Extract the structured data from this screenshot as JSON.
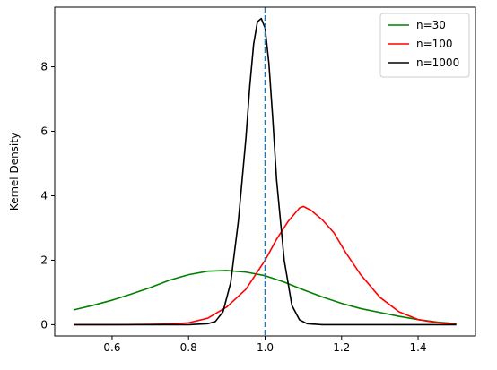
{
  "chart_data": {
    "type": "line",
    "title": "",
    "xlabel": "",
    "ylabel": "Kernel Density",
    "xlim": [
      0.45,
      1.55
    ],
    "ylim": [
      -0.35,
      9.85
    ],
    "xticks": [
      0.6,
      0.8,
      1.0,
      1.2,
      1.4
    ],
    "xtick_labels": [
      "0.6",
      "0.8",
      "1.0",
      "1.2",
      "1.4"
    ],
    "yticks": [
      0,
      2,
      4,
      6,
      8
    ],
    "ytick_labels": [
      "0",
      "2",
      "4",
      "6",
      "8"
    ],
    "grid": false,
    "legend_position": "top-right",
    "reference_line": {
      "x": 1.0,
      "color": "#1f77b4",
      "style": "dashed"
    },
    "series": [
      {
        "name": "n=30",
        "color": "#008000",
        "points": [
          [
            0.5,
            0.46
          ],
          [
            0.55,
            0.6
          ],
          [
            0.6,
            0.76
          ],
          [
            0.65,
            0.95
          ],
          [
            0.7,
            1.15
          ],
          [
            0.75,
            1.38
          ],
          [
            0.8,
            1.55
          ],
          [
            0.85,
            1.66
          ],
          [
            0.9,
            1.68
          ],
          [
            0.95,
            1.63
          ],
          [
            1.0,
            1.52
          ],
          [
            1.05,
            1.32
          ],
          [
            1.1,
            1.08
          ],
          [
            1.15,
            0.86
          ],
          [
            1.2,
            0.66
          ],
          [
            1.25,
            0.5
          ],
          [
            1.3,
            0.38
          ],
          [
            1.35,
            0.26
          ],
          [
            1.4,
            0.16
          ],
          [
            1.45,
            0.08
          ],
          [
            1.5,
            0.03
          ]
        ]
      },
      {
        "name": "n=100",
        "color": "#ff0000",
        "points": [
          [
            0.5,
            0.0
          ],
          [
            0.6,
            0.0
          ],
          [
            0.7,
            0.01
          ],
          [
            0.75,
            0.02
          ],
          [
            0.8,
            0.06
          ],
          [
            0.85,
            0.2
          ],
          [
            0.9,
            0.55
          ],
          [
            0.95,
            1.1
          ],
          [
            1.0,
            2.0
          ],
          [
            1.03,
            2.65
          ],
          [
            1.06,
            3.2
          ],
          [
            1.09,
            3.62
          ],
          [
            1.1,
            3.67
          ],
          [
            1.12,
            3.55
          ],
          [
            1.15,
            3.25
          ],
          [
            1.18,
            2.85
          ],
          [
            1.21,
            2.25
          ],
          [
            1.25,
            1.55
          ],
          [
            1.3,
            0.85
          ],
          [
            1.35,
            0.4
          ],
          [
            1.4,
            0.16
          ],
          [
            1.45,
            0.06
          ],
          [
            1.5,
            0.02
          ]
        ]
      },
      {
        "name": "n=1000",
        "color": "#000000",
        "points": [
          [
            0.5,
            0.0
          ],
          [
            0.8,
            0.0
          ],
          [
            0.85,
            0.03
          ],
          [
            0.87,
            0.1
          ],
          [
            0.89,
            0.4
          ],
          [
            0.91,
            1.3
          ],
          [
            0.93,
            3.2
          ],
          [
            0.95,
            5.8
          ],
          [
            0.96,
            7.4
          ],
          [
            0.97,
            8.7
          ],
          [
            0.98,
            9.4
          ],
          [
            0.99,
            9.5
          ],
          [
            1.0,
            9.2
          ],
          [
            1.01,
            8.1
          ],
          [
            1.02,
            6.4
          ],
          [
            1.03,
            4.5
          ],
          [
            1.05,
            2.0
          ],
          [
            1.07,
            0.6
          ],
          [
            1.09,
            0.15
          ],
          [
            1.11,
            0.03
          ],
          [
            1.15,
            0.0
          ],
          [
            1.5,
            0.0
          ]
        ]
      }
    ]
  }
}
